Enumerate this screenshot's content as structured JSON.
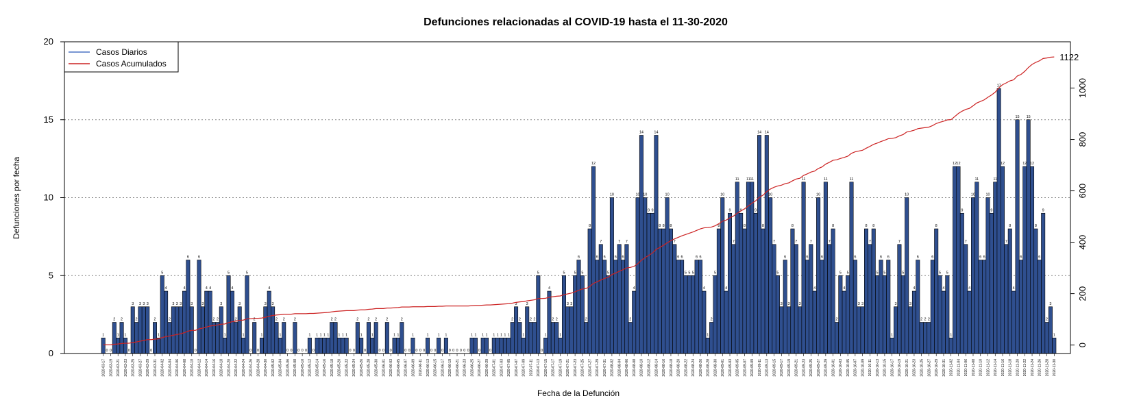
{
  "chart_data": {
    "type": "bar",
    "title": "Defunciones relacionadas al COVID-19 hasta el 11-30-2020",
    "xlabel": "Fecha de la Defunción",
    "ylabel": "Defunciones por fecha",
    "ylim": [
      0,
      20
    ],
    "y_ticks": [
      0,
      5,
      10,
      15,
      20
    ],
    "y2lim": [
      -33,
      1180
    ],
    "y2_ticks": [
      0,
      200,
      400,
      600,
      800,
      1000
    ],
    "grid": "horizontal dotted at 5, 10, 15",
    "legend_position": "top-left",
    "start_date": "2020-03-17",
    "end_date": "2020-11-30",
    "x_tick_labels": [
      "2020-03-17",
      "2020-03-19",
      "2020-03-21",
      "2020-03-23",
      "2020-03-25",
      "2020-03-27",
      "2020-03-29",
      "2020-03-31",
      "2020-04-02",
      "2020-04-04",
      "2020-04-06",
      "2020-04-08",
      "2020-04-10",
      "2020-04-12",
      "2020-04-14",
      "2020-04-16",
      "2020-04-18",
      "2020-04-20",
      "2020-04-22",
      "2020-04-24",
      "2020-04-26",
      "2020-04-28",
      "2020-04-30",
      "2020-05-02",
      "2020-05-04",
      "2020-05-06",
      "2020-05-08",
      "2020-05-10",
      "2020-05-12",
      "2020-05-14",
      "2020-05-16",
      "2020-05-18",
      "2020-05-20",
      "2020-05-22",
      "2020-05-24",
      "2020-05-26",
      "2020-05-28",
      "2020-05-30",
      "2020-06-01",
      "2020-06-03",
      "2020-06-05",
      "2020-06-07",
      "2020-06-09",
      "2020-06-11",
      "2020-06-13",
      "2020-06-15",
      "2020-06-17",
      "2020-06-19",
      "2020-06-21",
      "2020-06-23",
      "2020-06-25",
      "2020-06-27",
      "2020-06-29",
      "2020-07-01",
      "2020-07-03",
      "2020-07-05",
      "2020-07-07",
      "2020-07-09",
      "2020-07-11",
      "2020-07-13",
      "2020-07-15",
      "2020-07-17",
      "2020-07-19",
      "2020-07-21",
      "2020-07-23",
      "2020-07-25",
      "2020-07-27",
      "2020-07-29",
      "2020-07-31",
      "2020-08-02",
      "2020-08-04",
      "2020-08-06",
      "2020-08-08",
      "2020-08-10",
      "2020-08-12",
      "2020-08-14",
      "2020-08-16",
      "2020-08-18",
      "2020-08-20",
      "2020-08-22",
      "2020-08-24",
      "2020-08-26",
      "2020-08-28",
      "2020-08-30",
      "2020-09-01",
      "2020-09-03",
      "2020-09-05",
      "2020-09-07",
      "2020-09-09",
      "2020-09-11",
      "2020-09-13",
      "2020-09-15",
      "2020-09-17",
      "2020-09-19",
      "2020-09-21",
      "2020-09-23",
      "2020-09-25",
      "2020-09-27",
      "2020-09-29",
      "2020-10-01",
      "2020-10-03",
      "2020-10-05",
      "2020-10-07",
      "2020-10-09",
      "2020-10-11",
      "2020-10-13",
      "2020-10-15",
      "2020-10-17",
      "2020-10-19",
      "2020-10-21",
      "2020-10-23",
      "2020-10-25",
      "2020-10-27",
      "2020-10-29",
      "2020-10-31",
      "2020-11-02",
      "2020-11-04",
      "2020-11-06",
      "2020-11-08",
      "2020-11-10",
      "2020-11-12",
      "2020-11-14",
      "2020-11-16",
      "2020-11-18",
      "2020-11-20",
      "2020-11-22",
      "2020-11-24",
      "2020-11-26",
      "2020-11-28",
      "2020-11-30"
    ],
    "series": [
      {
        "name": "Casos Diarios",
        "color": "#4a72c4",
        "bar_fill": "#2f4f8f",
        "values": [
          1,
          0,
          0,
          2,
          1,
          2,
          1,
          0,
          3,
          2,
          3,
          3,
          3,
          0,
          2,
          1,
          5,
          4,
          2,
          3,
          3,
          3,
          4,
          6,
          3,
          0,
          6,
          3,
          4,
          4,
          2,
          2,
          3,
          1,
          5,
          4,
          2,
          3,
          1,
          5,
          0,
          2,
          0,
          1,
          3,
          4,
          3,
          2,
          1,
          2,
          0,
          0,
          2,
          0,
          0,
          0,
          1,
          0,
          1,
          1,
          1,
          1,
          2,
          2,
          1,
          1,
          1,
          0,
          0,
          2,
          1,
          0,
          2,
          1,
          2,
          0,
          0,
          2,
          0,
          1,
          1,
          2,
          0,
          0,
          1,
          0,
          0,
          0,
          1,
          0,
          0,
          1,
          0,
          1,
          0,
          0,
          0,
          0,
          0,
          0,
          1,
          1,
          0,
          1,
          1,
          0,
          1,
          1,
          1,
          1,
          1,
          2,
          3,
          2,
          1,
          3,
          2,
          2,
          5,
          0,
          1,
          4,
          2,
          2,
          1,
          5,
          3,
          3,
          5,
          6,
          5,
          2,
          8,
          12,
          6,
          7,
          6,
          5,
          10,
          6,
          7,
          6,
          7,
          2,
          4,
          10,
          14,
          10,
          9,
          9,
          14,
          8,
          8,
          10,
          8,
          7,
          6,
          6,
          5,
          5,
          5,
          6,
          6,
          4,
          1,
          2,
          5,
          8,
          10,
          4,
          9,
          7,
          11,
          9,
          8,
          11,
          11,
          9,
          14,
          8,
          14,
          10,
          7,
          5,
          3,
          6,
          3,
          8,
          7,
          3,
          11,
          6,
          7,
          4,
          10,
          6,
          11,
          7,
          8,
          2,
          5,
          4,
          5,
          11,
          6,
          3,
          3,
          8,
          7,
          8,
          5,
          6,
          5,
          6,
          1,
          3,
          7,
          5,
          10,
          3,
          4,
          6,
          2,
          2,
          2,
          6,
          8,
          5,
          4,
          5,
          1,
          12,
          12,
          9,
          7,
          4,
          10,
          11,
          6,
          6,
          10,
          9,
          11,
          17,
          12,
          7,
          8,
          4,
          15,
          6,
          12,
          15,
          12,
          8,
          6,
          9,
          2,
          3,
          1
        ]
      },
      {
        "name": "Casos Acumulados",
        "color": "#cc2222",
        "final_value": 1122
      }
    ]
  }
}
